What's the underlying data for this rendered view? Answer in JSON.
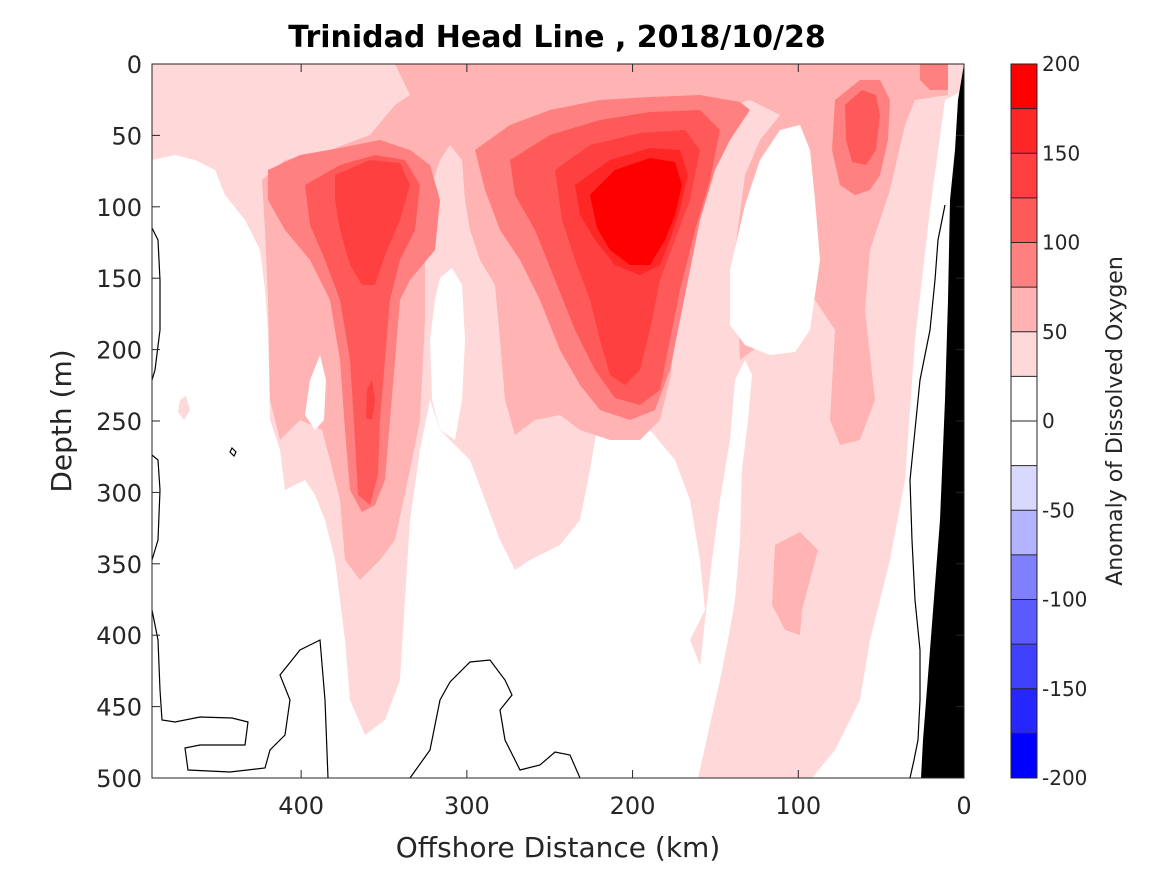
{
  "chart_data": {
    "type": "heatmap",
    "title": "Trinidad Head Line , 2018/10/28",
    "xlabel": "Offshore Distance (km)",
    "ylabel": "Depth (m)",
    "xlim": [
      490,
      0
    ],
    "ylim": [
      0,
      500
    ],
    "x_reversed": true,
    "y_reversed": true,
    "x_ticks": [
      400,
      300,
      200,
      100,
      0
    ],
    "y_ticks": [
      0,
      50,
      100,
      150,
      200,
      250,
      300,
      350,
      400,
      450,
      500
    ],
    "colorbar": {
      "label": "Anomaly of Dissolved Oxygen",
      "ticks": [
        200,
        150,
        100,
        50,
        0,
        -50,
        -100,
        -150,
        -200
      ],
      "levels": [
        {
          "min": 175,
          "max": 200,
          "color": "#ff0000"
        },
        {
          "min": 150,
          "max": 175,
          "color": "#ff2626"
        },
        {
          "min": 125,
          "max": 150,
          "color": "#ff4040"
        },
        {
          "min": 100,
          "max": 125,
          "color": "#ff5a5a"
        },
        {
          "min": 75,
          "max": 100,
          "color": "#ff8080"
        },
        {
          "min": 50,
          "max": 75,
          "color": "#ffb3b3"
        },
        {
          "min": 25,
          "max": 50,
          "color": "#ffd9d9"
        },
        {
          "min": 0,
          "max": 25,
          "color": "#ffffff"
        },
        {
          "min": -25,
          "max": 0,
          "color": "#ffffff"
        },
        {
          "min": -50,
          "max": -25,
          "color": "#d9d9ff"
        },
        {
          "min": -75,
          "max": -50,
          "color": "#b3b3ff"
        },
        {
          "min": -100,
          "max": -75,
          "color": "#8080ff"
        },
        {
          "min": -125,
          "max": -100,
          "color": "#5a5aff"
        },
        {
          "min": -150,
          "max": -125,
          "color": "#4040ff"
        },
        {
          "min": -175,
          "max": -150,
          "color": "#2626ff"
        },
        {
          "min": -200,
          "max": -175,
          "color": "#0000ff"
        }
      ]
    },
    "features": [
      {
        "name": "oxygen-max-near-200km",
        "center_km": 195,
        "center_depth_m": 100,
        "peak_level": 175
      },
      {
        "name": "oxygen-max-near-355km",
        "center_km": 355,
        "center_depth_m": 110,
        "peak_level": 125
      },
      {
        "name": "oxygen-max-near-65km",
        "center_km": 65,
        "center_depth_m": 50,
        "peak_level": 125
      },
      {
        "name": "nearshore-surface-max",
        "center_km": 15,
        "center_depth_m": 5,
        "peak_level": 100
      }
    ],
    "bathymetry_color": "#000000",
    "zero_contour_color": "#000000"
  }
}
